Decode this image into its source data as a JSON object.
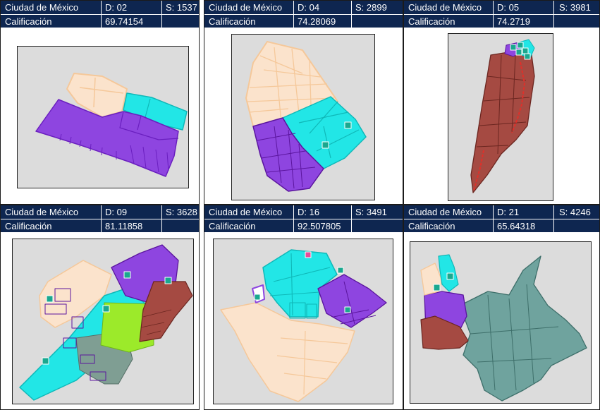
{
  "panels": [
    {
      "city": "Ciudad de México",
      "district": "D: 02",
      "s": "S: 1537",
      "label": "Calificación",
      "score": "69.74154"
    },
    {
      "city": "Ciudad de México",
      "district": "D: 04",
      "s": "S: 2899",
      "label": "Calificación",
      "score": "74.28069"
    },
    {
      "city": "Ciudad de México",
      "district": "D: 05",
      "s": "S: 3981",
      "label": "Calificación",
      "score": "74.2719"
    },
    {
      "city": "Ciudad de México",
      "district": "D: 09",
      "s": "S: 3628",
      "label": "Calificación",
      "score": "81.11858"
    },
    {
      "city": "Ciudad de México",
      "district": "D: 16",
      "s": "S: 3491",
      "label": "Calificación",
      "score": "92.507805"
    },
    {
      "city": "Ciudad de México",
      "district": "D: 21",
      "s": "S: 4246",
      "label": "Calificación",
      "score": "65.64318"
    }
  ],
  "colors": {
    "header_bg": "#0e2650",
    "map_bg": "#dcdcdc",
    "peach": "#fbe3cc",
    "peach_border": "#f5c89a",
    "cyan": "#22e6e6",
    "purple": "#8e45e0",
    "brown": "#a54a42",
    "green": "#9cea2a",
    "teal": "#6fa39e",
    "gray_green": "#7f9e93",
    "marker": "#1aa88f"
  },
  "marker_icon": "school-marker-icon"
}
